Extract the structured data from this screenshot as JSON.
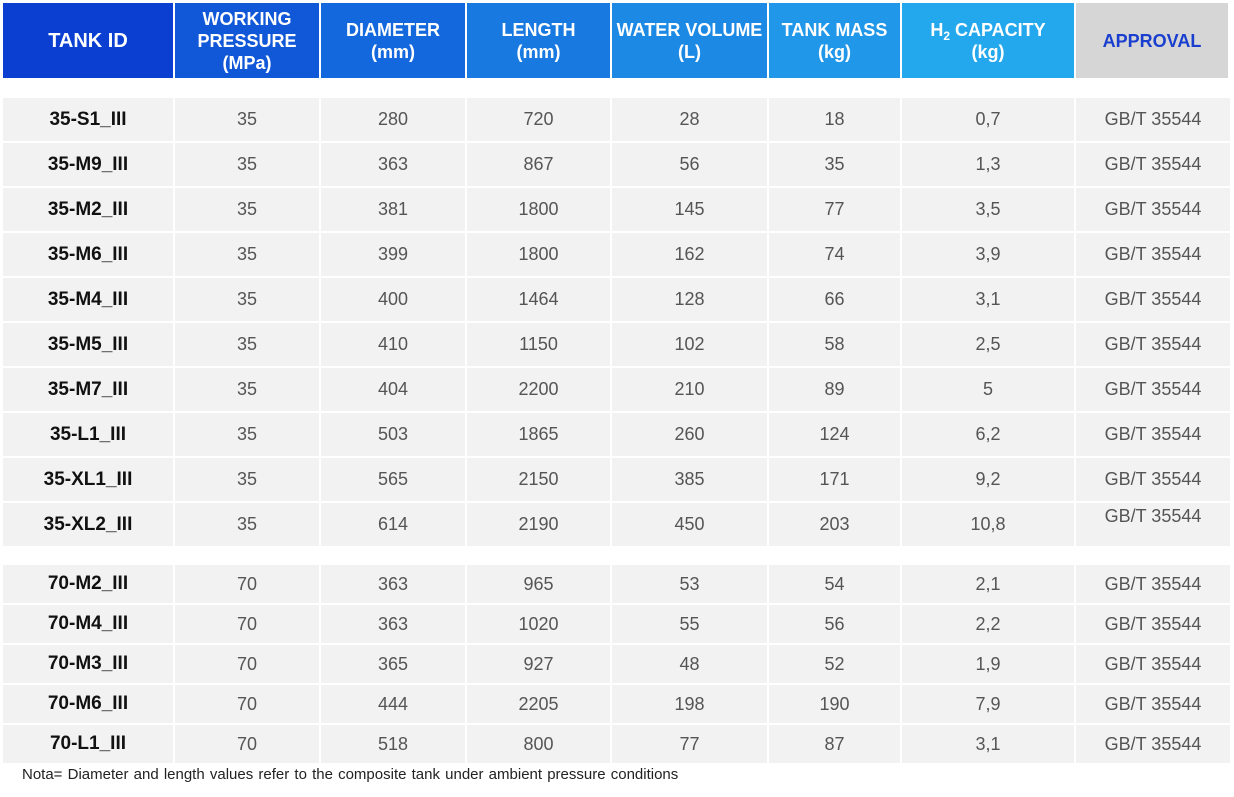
{
  "table": {
    "headers": {
      "tank_id": "TANK ID",
      "working_pressure": [
        "WORKING",
        "PRESSURE",
        "(MPa)"
      ],
      "diameter": [
        "DIAMETER",
        "(mm)"
      ],
      "length": [
        "LENGTH",
        "(mm)"
      ],
      "water_volume": [
        "WATER VOLUME",
        "(L)"
      ],
      "tank_mass": [
        "TANK MASS",
        "(kg)"
      ],
      "h2_capacity": {
        "h": "H",
        "sub": "2",
        "rest": " CAPACITY",
        "unit": "(kg)"
      },
      "approval": "APPROVAL"
    },
    "group_35": [
      {
        "id": "35-S1_III",
        "pressure": "35",
        "diameter": "280",
        "length": "720",
        "volume": "28",
        "mass": "18",
        "h2": "0,7",
        "approval": "GB/T 35544"
      },
      {
        "id": "35-M9_III",
        "pressure": "35",
        "diameter": "363",
        "length": "867",
        "volume": "56",
        "mass": "35",
        "h2": "1,3",
        "approval": "GB/T 35544"
      },
      {
        "id": "35-M2_III",
        "pressure": "35",
        "diameter": "381",
        "length": "1800",
        "volume": "145",
        "mass": "77",
        "h2": "3,5",
        "approval": "GB/T 35544"
      },
      {
        "id": "35-M6_III",
        "pressure": "35",
        "diameter": "399",
        "length": "1800",
        "volume": "162",
        "mass": "74",
        "h2": "3,9",
        "approval": "GB/T 35544"
      },
      {
        "id": "35-M4_III",
        "pressure": "35",
        "diameter": "400",
        "length": "1464",
        "volume": "128",
        "mass": "66",
        "h2": "3,1",
        "approval": "GB/T 35544"
      },
      {
        "id": "35-M5_III",
        "pressure": "35",
        "diameter": "410",
        "length": "1150",
        "volume": "102",
        "mass": "58",
        "h2": "2,5",
        "approval": "GB/T 35544"
      },
      {
        "id": "35-M7_III",
        "pressure": "35",
        "diameter": "404",
        "length": "2200",
        "volume": "210",
        "mass": "89",
        "h2": "5",
        "approval": "GB/T 35544"
      },
      {
        "id": "35-L1_III",
        "pressure": "35",
        "diameter": "503",
        "length": "1865",
        "volume": "260",
        "mass": "124",
        "h2": "6,2",
        "approval": "GB/T 35544"
      },
      {
        "id": "35-XL1_III",
        "pressure": "35",
        "diameter": "565",
        "length": "2150",
        "volume": "385",
        "mass": "171",
        "h2": "9,2",
        "approval": "GB/T 35544"
      },
      {
        "id": "35-XL2_III",
        "pressure": "35",
        "diameter": "614",
        "length": "2190",
        "volume": "450",
        "mass": "203",
        "h2": "10,8",
        "approval": "GB/T 35544"
      }
    ],
    "group_70": [
      {
        "id": "70-M2_III",
        "pressure": "70",
        "diameter": "363",
        "length": "965",
        "volume": "53",
        "mass": "54",
        "h2": "2,1",
        "approval": "GB/T 35544"
      },
      {
        "id": "70-M4_III",
        "pressure": "70",
        "diameter": "363",
        "length": "1020",
        "volume": "55",
        "mass": "56",
        "h2": "2,2",
        "approval": "GB/T 35544"
      },
      {
        "id": "70-M3_III",
        "pressure": "70",
        "diameter": "365",
        "length": "927",
        "volume": "48",
        "mass": "52",
        "h2": "1,9",
        "approval": "GB/T 35544"
      },
      {
        "id": "70-M6_III",
        "pressure": "70",
        "diameter": "444",
        "length": "2205",
        "volume": "198",
        "mass": "190",
        "h2": "7,9",
        "approval": "GB/T 35544"
      },
      {
        "id": "70-L1_III",
        "pressure": "70",
        "diameter": "518",
        "length": "800",
        "volume": "77",
        "mass": "87",
        "h2": "3,1",
        "approval": "GB/T 35544"
      }
    ]
  },
  "note": "Nota= Diameter and length values refer to the composite tank under ambient pressure conditions"
}
